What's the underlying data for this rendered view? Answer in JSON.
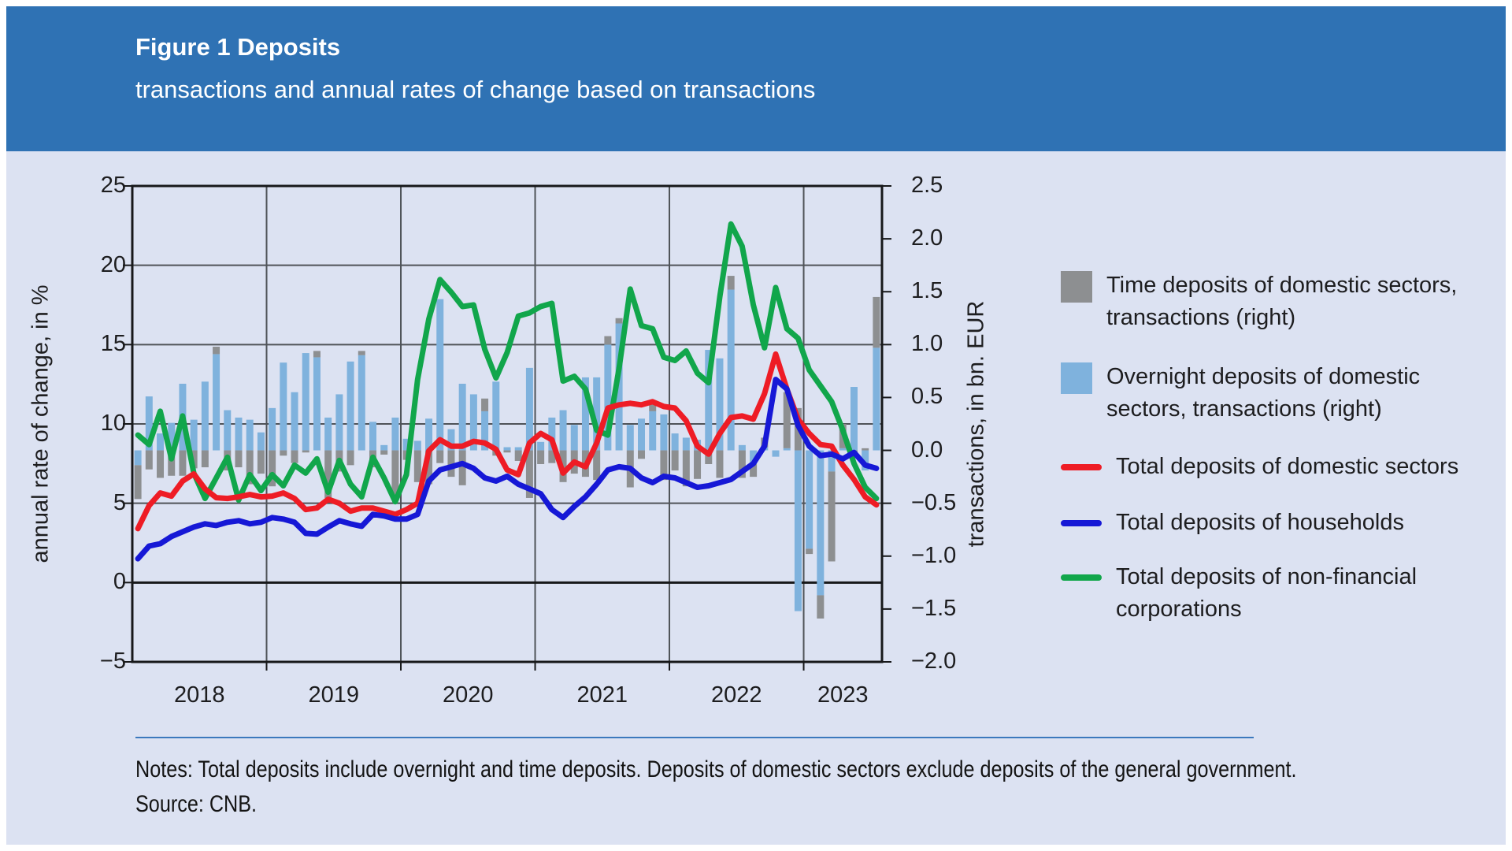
{
  "header": {
    "title": "Figure 1 Deposits",
    "subtitle": "transactions and annual rates of change based on transactions"
  },
  "notes": {
    "line1": "Notes: Total deposits include overnight and time deposits. Deposits of domestic sectors exclude deposits of the general government.",
    "line2": "Source: CNB."
  },
  "colors": {
    "header_bg": "#2f72b4",
    "page_bg": "#dce2f2",
    "bar_gray": "#8d8f91",
    "bar_blue": "#7fb2dd",
    "line_red": "#ee1c25",
    "line_blue": "#1618d6",
    "line_green": "#11a64b",
    "grid": "#4f5358",
    "axis": "#17181a",
    "separator": "#3c79bd"
  },
  "chart_data": {
    "type": "bar",
    "subtype": "combo bar(stacked, right axis) + 3 lines (left axis), monthly data",
    "x_start": "2018-01",
    "x_end": "2023-07",
    "months_count": 67,
    "year_labels": [
      "2018",
      "2019",
      "2020",
      "2021",
      "2022",
      "2023"
    ],
    "year_label_month_centers": [
      6,
      18,
      30,
      42,
      54,
      63.5
    ],
    "year_boundary_months": [
      12,
      24,
      36,
      48,
      60
    ],
    "left_axis": {
      "label": "annual rate of change, in %",
      "ticks": [
        25,
        20,
        15,
        10,
        5,
        0,
        -5
      ],
      "range": [
        -5,
        25
      ],
      "gridlines_at": [
        20,
        15,
        10,
        5
      ],
      "zero_line_at": 0
    },
    "right_axis": {
      "label": "transactions, in bn. EUR",
      "ticks": [
        2.5,
        2.0,
        1.5,
        1.0,
        0.5,
        0.0,
        -0.5,
        -1.0,
        -1.5,
        -2.0
      ],
      "range": [
        -2.0,
        2.5
      ]
    },
    "series": [
      {
        "name": "Time deposits of domestic sectors, transactions (right)",
        "type": "bar",
        "axis": "right",
        "color_key": "bar_gray",
        "values": [
          -0.32,
          -0.18,
          -0.26,
          -0.24,
          -0.24,
          -0.17,
          -0.16,
          0.07,
          -0.19,
          -0.16,
          -0.32,
          -0.22,
          -0.34,
          -0.05,
          -0.12,
          -0.02,
          0.06,
          -0.45,
          -0.2,
          -0.14,
          0.04,
          -0.16,
          -0.04,
          -0.45,
          -0.09,
          -0.3,
          -0.32,
          -0.12,
          -0.25,
          -0.33,
          0.0,
          0.12,
          -0.05,
          -0.02,
          -0.1,
          -0.45,
          -0.13,
          -0.12,
          -0.3,
          -0.22,
          -0.25,
          -0.28,
          0.08,
          0.05,
          -0.35,
          -0.08,
          0.07,
          -0.28,
          -0.19,
          -0.34,
          -0.27,
          -0.13,
          -0.26,
          0.13,
          -0.26,
          -0.12,
          0.09,
          0.0,
          0.53,
          0.4,
          -0.05,
          -0.22,
          -0.85,
          0.23,
          -0.02,
          0.02,
          0.48
        ]
      },
      {
        "name": "Overnight deposits of domestic sectors, transactions (right)",
        "type": "bar",
        "axis": "right",
        "color_key": "bar_blue",
        "values": [
          -0.14,
          0.51,
          0.16,
          0.26,
          0.63,
          0.29,
          0.65,
          0.91,
          0.38,
          0.31,
          0.29,
          0.17,
          0.4,
          0.83,
          0.55,
          0.92,
          0.88,
          0.31,
          0.53,
          0.84,
          0.9,
          0.27,
          0.05,
          0.31,
          0.11,
          0.09,
          0.3,
          1.43,
          0.2,
          0.63,
          0.53,
          0.37,
          0.65,
          0.03,
          0.03,
          0.78,
          0.08,
          0.31,
          0.38,
          0.24,
          0.69,
          0.69,
          1.0,
          1.2,
          0.24,
          0.3,
          0.37,
          0.34,
          0.16,
          0.12,
          0.1,
          0.95,
          0.87,
          1.52,
          0.05,
          -0.13,
          0.03,
          -0.06,
          0.02,
          -1.52,
          -0.93,
          -1.37,
          -0.2,
          0.02,
          0.6,
          -0.19,
          0.97
        ]
      },
      {
        "name": "Total deposits of non-financial corporations",
        "type": "line",
        "axis": "left",
        "color_key": "line_green",
        "values": [
          9.3,
          8.7,
          10.8,
          7.8,
          10.5,
          6.9,
          5.3,
          6.6,
          7.9,
          5.2,
          6.8,
          5.8,
          6.8,
          6.1,
          7.4,
          6.9,
          7.8,
          5.7,
          7.7,
          6.2,
          5.4,
          7.9,
          6.6,
          5.1,
          6.8,
          12.8,
          16.6,
          19.1,
          18.3,
          17.4,
          17.5,
          14.7,
          12.9,
          14.5,
          16.8,
          17.0,
          17.4,
          17.6,
          12.7,
          13.0,
          12.2,
          9.6,
          9.3,
          13.5,
          18.5,
          16.2,
          16.0,
          14.2,
          14.0,
          14.6,
          13.2,
          12.6,
          18.0,
          22.6,
          21.2,
          17.5,
          14.8,
          18.6,
          16.0,
          15.4,
          13.4,
          12.4,
          11.4,
          9.6,
          7.5,
          6.0,
          5.3
        ]
      },
      {
        "name": "Total deposits of domestic sectors",
        "type": "line",
        "axis": "left",
        "color_key": "line_red",
        "values": [
          3.4,
          4.85,
          5.65,
          5.45,
          6.4,
          6.85,
          5.9,
          5.35,
          5.3,
          5.4,
          5.55,
          5.4,
          5.45,
          5.65,
          5.3,
          4.6,
          4.7,
          5.25,
          5.0,
          4.5,
          4.7,
          4.7,
          4.5,
          4.3,
          4.6,
          5.0,
          8.3,
          9.0,
          8.6,
          8.6,
          8.9,
          8.8,
          8.4,
          7.1,
          6.8,
          8.8,
          9.4,
          9.0,
          6.9,
          7.6,
          7.3,
          8.8,
          11.0,
          11.2,
          11.3,
          11.2,
          11.4,
          11.1,
          11.0,
          10.2,
          8.6,
          8.1,
          9.4,
          10.4,
          10.5,
          10.3,
          11.9,
          14.4,
          12.2,
          10.3,
          9.4,
          8.7,
          8.6,
          7.4,
          6.5,
          5.4,
          4.9
        ]
      },
      {
        "name": "Total deposits of households",
        "type": "line",
        "axis": "left",
        "color_key": "line_blue",
        "values": [
          1.5,
          2.3,
          2.45,
          2.9,
          3.2,
          3.5,
          3.7,
          3.6,
          3.8,
          3.9,
          3.7,
          3.8,
          4.1,
          4.0,
          3.8,
          3.1,
          3.05,
          3.5,
          3.9,
          3.7,
          3.55,
          4.3,
          4.2,
          4.0,
          4.0,
          4.3,
          6.4,
          7.1,
          7.3,
          7.5,
          7.2,
          6.6,
          6.4,
          6.7,
          6.2,
          5.9,
          5.6,
          4.6,
          4.1,
          4.8,
          5.4,
          6.2,
          7.1,
          7.3,
          7.2,
          6.6,
          6.3,
          6.7,
          6.6,
          6.3,
          6.0,
          6.1,
          6.3,
          6.5,
          7.0,
          7.5,
          8.6,
          12.8,
          12.2,
          9.9,
          8.6,
          8.0,
          8.1,
          7.8,
          8.2,
          7.4,
          7.2
        ]
      }
    ],
    "legend": {
      "position": "right",
      "items": [
        {
          "swatch": "square",
          "color_key": "bar_gray",
          "lines": [
            "Time deposits of domestic sectors,",
            "transactions (right)"
          ],
          "gap_after": 34
        },
        {
          "swatch": "square",
          "color_key": "bar_blue",
          "lines": [
            "Overnight deposits of domestic",
            "sectors, transactions (right)"
          ],
          "gap_after": 32
        },
        {
          "swatch": "line",
          "color_key": "line_red",
          "lines": [
            "Total deposits of domestic sectors"
          ],
          "gap_after": 30
        },
        {
          "swatch": "line",
          "color_key": "line_blue",
          "lines": [
            "Total deposits of households"
          ],
          "gap_after": 28
        },
        {
          "swatch": "line",
          "color_key": "line_green",
          "lines": [
            "Total deposits of non-financial",
            "corporations"
          ],
          "gap_after": 0
        }
      ]
    }
  }
}
